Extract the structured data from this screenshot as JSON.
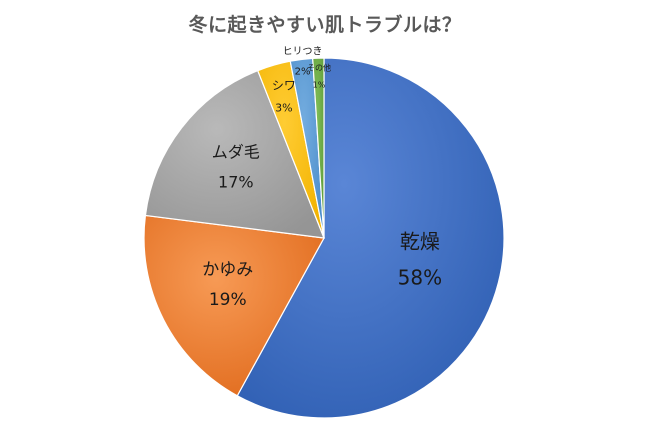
{
  "chart_data": {
    "type": "pie",
    "title": "冬に起きやすい肌トラブルは？",
    "slices": [
      {
        "label": "乾燥",
        "value": 58,
        "value_text": "58%",
        "color": "#4472C4"
      },
      {
        "label": "かゆみ",
        "value": 19,
        "value_text": "19%",
        "color": "#ED7D31"
      },
      {
        "label": "ムダ毛",
        "value": 17,
        "value_text": "17%",
        "color": "#A5A5A5"
      },
      {
        "label": "シワ",
        "value": 3,
        "value_text": "3%",
        "color": "#FFC000"
      },
      {
        "label": "ヒリつき",
        "value": 2,
        "value_text": "2%",
        "color": "#5B9BD5"
      },
      {
        "label": "その他",
        "value": 1,
        "value_text": "1%",
        "color": "#70AD47"
      }
    ],
    "direction": "clockwise",
    "start": "top"
  }
}
